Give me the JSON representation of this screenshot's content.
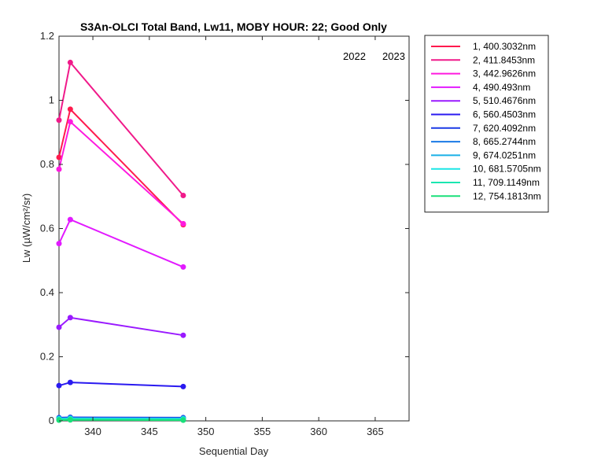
{
  "chart_data": {
    "type": "line",
    "title": "S3An-OLCI Total Band,  Lw11, MOBY HOUR: 22;  Good Only",
    "xlabel": "Sequential Day",
    "ylabel": "Lw (µW/cm²/sr)",
    "xlim": [
      337,
      368
    ],
    "ylim": [
      0,
      1.2
    ],
    "xticks": [
      "340",
      "345",
      "350",
      "355",
      "360",
      "365"
    ],
    "yticks": [
      "0",
      "0.2",
      "0.4",
      "0.6",
      "0.8",
      "1",
      "1.2"
    ],
    "xtick_values": [
      340,
      345,
      350,
      355,
      360,
      365
    ],
    "ytick_values": [
      0,
      0.2,
      0.4,
      0.6,
      0.8,
      1.0,
      1.2
    ],
    "year_labels": [
      "2022",
      "2023"
    ],
    "legend_position": "outside-right",
    "grid": false,
    "x": [
      337,
      338,
      348
    ],
    "series": [
      {
        "name": "1, 400.3032nm",
        "color": "#ff1a4d",
        "values": [
          0.822,
          0.972,
          0.612
        ]
      },
      {
        "name": "2, 411.8453nm",
        "color": "#f01a8a",
        "values": [
          0.938,
          1.118,
          0.703
        ]
      },
      {
        "name": "3, 442.9626nm",
        "color": "#ff1adf",
        "values": [
          0.785,
          0.933,
          0.615
        ]
      },
      {
        "name": "4,  490.493nm",
        "color": "#e21aff",
        "values": [
          0.553,
          0.628,
          0.48
        ]
      },
      {
        "name": "5, 510.4676nm",
        "color": "#9a1aff",
        "values": [
          0.292,
          0.322,
          0.267
        ]
      },
      {
        "name": "6, 560.4503nm",
        "color": "#2a1af0",
        "values": [
          0.11,
          0.12,
          0.107
        ]
      },
      {
        "name": "7, 620.4092nm",
        "color": "#1a3ae6",
        "values": [
          0.01,
          0.011,
          0.01
        ]
      },
      {
        "name": "8, 665.2744nm",
        "color": "#1a7ae6",
        "values": [
          0.008,
          0.009,
          0.008
        ]
      },
      {
        "name": "9, 674.0251nm",
        "color": "#1ab0e6",
        "values": [
          0.007,
          0.008,
          0.007
        ]
      },
      {
        "name": "10, 681.5705nm",
        "color": "#1ae6e6",
        "values": [
          0.006,
          0.007,
          0.006
        ]
      },
      {
        "name": "11, 709.1149nm",
        "color": "#1ae6b0",
        "values": [
          0.004,
          0.005,
          0.004
        ]
      },
      {
        "name": "12, 754.1813nm",
        "color": "#1ae07a",
        "values": [
          0.002,
          0.003,
          0.002
        ]
      }
    ]
  }
}
